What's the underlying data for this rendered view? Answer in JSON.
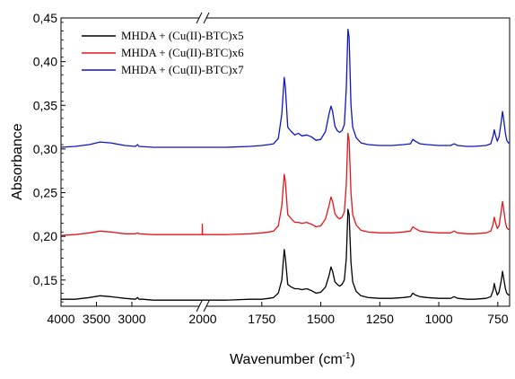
{
  "chart_data": {
    "type": "line",
    "title": "",
    "xlabel": "Wavenumber (cm",
    "xlabel_sup": "-1",
    "xlabel_close": ")",
    "ylabel": "Absorbance",
    "axis_break": true,
    "xlim_left": [
      4000,
      2000
    ],
    "xlim_right": [
      2000,
      700
    ],
    "ylim": [
      0.12,
      0.45
    ],
    "x_ticks_left": [
      "4000",
      "3500",
      "3000"
    ],
    "x_ticks_left_values": [
      4000,
      3500,
      3000
    ],
    "x_ticks_right": [
      "2000",
      "1750",
      "1500",
      "1250",
      "1000",
      "750"
    ],
    "x_ticks_right_values": [
      2000,
      1750,
      1500,
      1250,
      1000,
      750
    ],
    "y_ticks": [
      "0,15",
      "0,20",
      "0,25",
      "0,30",
      "0,35",
      "0,40",
      "0,45"
    ],
    "y_ticks_values": [
      0.15,
      0.2,
      0.25,
      0.3,
      0.35,
      0.4,
      0.45
    ],
    "grid": false,
    "legend_position": "top-left",
    "series": [
      {
        "name": "MHDA + (Cu(II)-BTC)x5",
        "color": "#000000",
        "points": [
          [
            4000,
            0.128
          ],
          [
            3800,
            0.128
          ],
          [
            3600,
            0.13
          ],
          [
            3450,
            0.132
          ],
          [
            3300,
            0.131
          ],
          [
            3100,
            0.129
          ],
          [
            2950,
            0.128
          ],
          [
            2920,
            0.13
          ],
          [
            2900,
            0.128
          ],
          [
            2850,
            0.128
          ],
          [
            2700,
            0.127
          ],
          [
            2500,
            0.127
          ],
          [
            2300,
            0.127
          ],
          [
            2100,
            0.127
          ],
          [
            2000,
            0.127
          ],
          [
            1900,
            0.127
          ],
          [
            1800,
            0.128
          ],
          [
            1750,
            0.128
          ],
          [
            1720,
            0.129
          ],
          [
            1700,
            0.13
          ],
          [
            1680,
            0.135
          ],
          [
            1665,
            0.15
          ],
          [
            1655,
            0.185
          ],
          [
            1650,
            0.175
          ],
          [
            1640,
            0.145
          ],
          [
            1625,
            0.142
          ],
          [
            1610,
            0.14
          ],
          [
            1595,
            0.14
          ],
          [
            1580,
            0.139
          ],
          [
            1560,
            0.14
          ],
          [
            1540,
            0.138
          ],
          [
            1520,
            0.135
          ],
          [
            1500,
            0.136
          ],
          [
            1480,
            0.142
          ],
          [
            1465,
            0.155
          ],
          [
            1457,
            0.165
          ],
          [
            1450,
            0.16
          ],
          [
            1440,
            0.148
          ],
          [
            1430,
            0.145
          ],
          [
            1420,
            0.143
          ],
          [
            1410,
            0.145
          ],
          [
            1400,
            0.15
          ],
          [
            1392,
            0.175
          ],
          [
            1385,
            0.231
          ],
          [
            1380,
            0.225
          ],
          [
            1372,
            0.17
          ],
          [
            1365,
            0.148
          ],
          [
            1350,
            0.137
          ],
          [
            1330,
            0.132
          ],
          [
            1300,
            0.13
          ],
          [
            1250,
            0.129
          ],
          [
            1200,
            0.129
          ],
          [
            1150,
            0.13
          ],
          [
            1120,
            0.131
          ],
          [
            1110,
            0.135
          ],
          [
            1100,
            0.133
          ],
          [
            1080,
            0.131
          ],
          [
            1050,
            0.13
          ],
          [
            1000,
            0.129
          ],
          [
            950,
            0.129
          ],
          [
            935,
            0.131
          ],
          [
            920,
            0.129
          ],
          [
            880,
            0.128
          ],
          [
            850,
            0.128
          ],
          [
            800,
            0.129
          ],
          [
            780,
            0.131
          ],
          [
            770,
            0.138
          ],
          [
            765,
            0.146
          ],
          [
            760,
            0.14
          ],
          [
            752,
            0.133
          ],
          [
            745,
            0.136
          ],
          [
            735,
            0.15
          ],
          [
            730,
            0.16
          ],
          [
            725,
            0.152
          ],
          [
            718,
            0.14
          ],
          [
            712,
            0.135
          ],
          [
            705,
            0.133
          ],
          [
            700,
            0.133
          ]
        ]
      },
      {
        "name": "MHDA + (Cu(II)-BTC)x6",
        "color": "#e8141b",
        "points": [
          [
            4000,
            0.201
          ],
          [
            3800,
            0.202
          ],
          [
            3600,
            0.204
          ],
          [
            3450,
            0.206
          ],
          [
            3300,
            0.205
          ],
          [
            3100,
            0.203
          ],
          [
            2950,
            0.203
          ],
          [
            2920,
            0.204
          ],
          [
            2900,
            0.203
          ],
          [
            2700,
            0.202
          ],
          [
            2500,
            0.202
          ],
          [
            2300,
            0.202
          ],
          [
            2100,
            0.202
          ],
          [
            2008,
            0.202
          ],
          [
            2006,
            0.214
          ],
          [
            2004,
            0.204
          ],
          [
            2002,
            0.202
          ],
          [
            2000,
            0.202
          ],
          [
            1900,
            0.202
          ],
          [
            1800,
            0.203
          ],
          [
            1750,
            0.204
          ],
          [
            1720,
            0.205
          ],
          [
            1700,
            0.206
          ],
          [
            1680,
            0.212
          ],
          [
            1665,
            0.235
          ],
          [
            1655,
            0.271
          ],
          [
            1650,
            0.262
          ],
          [
            1640,
            0.225
          ],
          [
            1625,
            0.22
          ],
          [
            1610,
            0.216
          ],
          [
            1595,
            0.216
          ],
          [
            1580,
            0.215
          ],
          [
            1560,
            0.216
          ],
          [
            1540,
            0.214
          ],
          [
            1520,
            0.211
          ],
          [
            1500,
            0.212
          ],
          [
            1480,
            0.22
          ],
          [
            1465,
            0.235
          ],
          [
            1457,
            0.245
          ],
          [
            1450,
            0.24
          ],
          [
            1440,
            0.226
          ],
          [
            1430,
            0.222
          ],
          [
            1420,
            0.22
          ],
          [
            1410,
            0.222
          ],
          [
            1400,
            0.228
          ],
          [
            1392,
            0.26
          ],
          [
            1385,
            0.318
          ],
          [
            1380,
            0.31
          ],
          [
            1372,
            0.25
          ],
          [
            1365,
            0.225
          ],
          [
            1350,
            0.213
          ],
          [
            1330,
            0.207
          ],
          [
            1300,
            0.205
          ],
          [
            1250,
            0.204
          ],
          [
            1200,
            0.204
          ],
          [
            1150,
            0.205
          ],
          [
            1120,
            0.206
          ],
          [
            1110,
            0.211
          ],
          [
            1100,
            0.209
          ],
          [
            1080,
            0.206
          ],
          [
            1050,
            0.205
          ],
          [
            1000,
            0.204
          ],
          [
            950,
            0.204
          ],
          [
            935,
            0.206
          ],
          [
            920,
            0.204
          ],
          [
            880,
            0.203
          ],
          [
            850,
            0.203
          ],
          [
            800,
            0.204
          ],
          [
            780,
            0.206
          ],
          [
            770,
            0.214
          ],
          [
            765,
            0.222
          ],
          [
            760,
            0.216
          ],
          [
            752,
            0.209
          ],
          [
            745,
            0.212
          ],
          [
            735,
            0.23
          ],
          [
            730,
            0.24
          ],
          [
            725,
            0.231
          ],
          [
            718,
            0.216
          ],
          [
            712,
            0.21
          ],
          [
            705,
            0.208
          ],
          [
            700,
            0.208
          ]
        ]
      },
      {
        "name": "MHDA + (Cu(II)-BTC)x7",
        "color": "#0f14c8",
        "points": [
          [
            4000,
            0.302
          ],
          [
            3800,
            0.303
          ],
          [
            3600,
            0.305
          ],
          [
            3450,
            0.308
          ],
          [
            3300,
            0.307
          ],
          [
            3100,
            0.304
          ],
          [
            2950,
            0.303
          ],
          [
            2920,
            0.305
          ],
          [
            2900,
            0.303
          ],
          [
            2700,
            0.302
          ],
          [
            2500,
            0.302
          ],
          [
            2300,
            0.302
          ],
          [
            2100,
            0.302
          ],
          [
            2000,
            0.302
          ],
          [
            1900,
            0.302
          ],
          [
            1800,
            0.303
          ],
          [
            1750,
            0.304
          ],
          [
            1720,
            0.305
          ],
          [
            1700,
            0.306
          ],
          [
            1680,
            0.312
          ],
          [
            1665,
            0.34
          ],
          [
            1655,
            0.382
          ],
          [
            1650,
            0.37
          ],
          [
            1640,
            0.325
          ],
          [
            1625,
            0.32
          ],
          [
            1610,
            0.316
          ],
          [
            1595,
            0.318
          ],
          [
            1580,
            0.315
          ],
          [
            1560,
            0.316
          ],
          [
            1540,
            0.314
          ],
          [
            1520,
            0.31
          ],
          [
            1500,
            0.311
          ],
          [
            1480,
            0.32
          ],
          [
            1465,
            0.34
          ],
          [
            1457,
            0.349
          ],
          [
            1450,
            0.343
          ],
          [
            1440,
            0.326
          ],
          [
            1430,
            0.321
          ],
          [
            1420,
            0.319
          ],
          [
            1410,
            0.321
          ],
          [
            1400,
            0.328
          ],
          [
            1392,
            0.37
          ],
          [
            1385,
            0.437
          ],
          [
            1380,
            0.428
          ],
          [
            1372,
            0.35
          ],
          [
            1365,
            0.325
          ],
          [
            1350,
            0.313
          ],
          [
            1330,
            0.307
          ],
          [
            1300,
            0.305
          ],
          [
            1250,
            0.304
          ],
          [
            1200,
            0.304
          ],
          [
            1150,
            0.305
          ],
          [
            1120,
            0.306
          ],
          [
            1110,
            0.311
          ],
          [
            1100,
            0.309
          ],
          [
            1080,
            0.306
          ],
          [
            1050,
            0.305
          ],
          [
            1000,
            0.304
          ],
          [
            950,
            0.304
          ],
          [
            935,
            0.306
          ],
          [
            920,
            0.304
          ],
          [
            880,
            0.303
          ],
          [
            850,
            0.303
          ],
          [
            800,
            0.304
          ],
          [
            780,
            0.306
          ],
          [
            770,
            0.315
          ],
          [
            765,
            0.322
          ],
          [
            760,
            0.316
          ],
          [
            752,
            0.309
          ],
          [
            745,
            0.314
          ],
          [
            735,
            0.332
          ],
          [
            730,
            0.343
          ],
          [
            725,
            0.334
          ],
          [
            718,
            0.318
          ],
          [
            712,
            0.31
          ],
          [
            705,
            0.307
          ],
          [
            700,
            0.307
          ]
        ]
      }
    ]
  }
}
